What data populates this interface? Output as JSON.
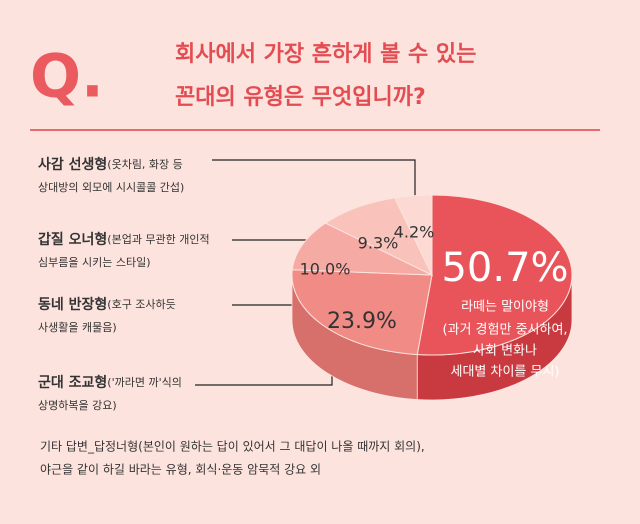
{
  "badge": "Q.",
  "chart_data": {
    "type": "pie",
    "title": [
      "회사에서 가장 흔하게 볼 수 있는",
      "꼰대의 유형은 무엇입니까?"
    ],
    "categories": [
      "라떼는 말이야형",
      "군대 조교형",
      "동네 반장형",
      "갑질 오너형",
      "사감 선생형"
    ],
    "descriptions": [
      [
        "(과거 경험만 중시하여,",
        "사회 변화나",
        "세대별 차이를 무시)"
      ],
      [
        "('까라면 까'식의",
        "상명하복을 강요)"
      ],
      [
        "(호구 조사하듯",
        "사생활을 캐물음)"
      ],
      [
        "(본업과 무관한 개인적",
        "심부름을 시키는 스타일)"
      ],
      [
        "(옷차림, 화장 등",
        "상대방의 외모에 시시콜콜 간섭)"
      ]
    ],
    "values": [
      50.7,
      23.9,
      10.0,
      9.3,
      4.2
    ],
    "value_labels": [
      "50.7%",
      "23.9%",
      "10.0%",
      "9.3%",
      "4.2%"
    ],
    "colors": [
      "#e9545a",
      "#f08b86",
      "#f5aaa3",
      "#f9c3bc",
      "#fcd9d3"
    ],
    "side_colors": [
      "#c83a40",
      "#d7706b",
      "#e0928b",
      "#e8aaa3",
      "#ecc0b9"
    ],
    "note": [
      "기타 답변_답정너형(본인이 원하는 답이 있어서 그 대답이 나올 때까지 회의),",
      "야근을 같이 하길 바라는 유형, 회식·운동 암묵적 강요 외"
    ]
  }
}
